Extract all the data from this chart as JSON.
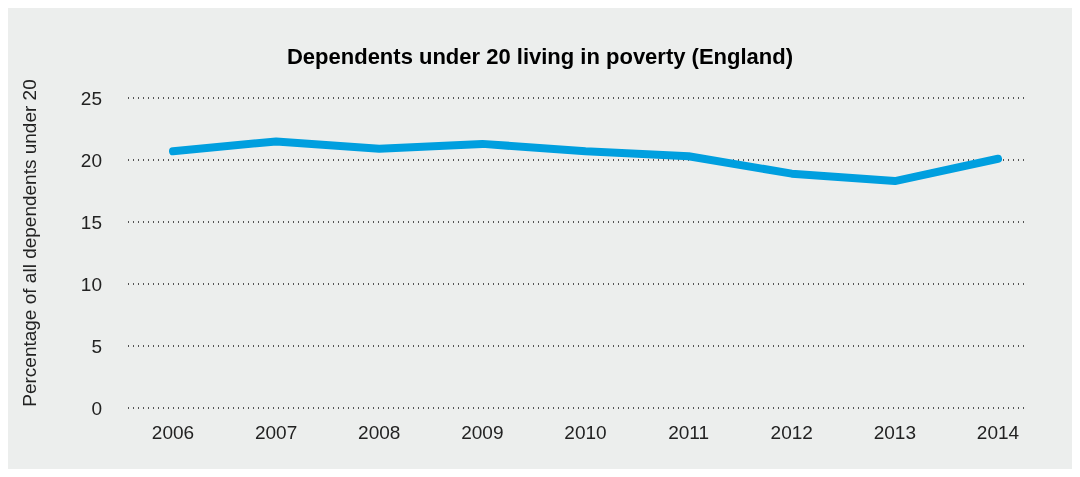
{
  "chart_data": {
    "type": "line",
    "title": "Dependents under 20 living in poverty (England)",
    "ylabel": "Percentage of all dependents under 20",
    "categories": [
      "2006",
      "2007",
      "2008",
      "2009",
      "2010",
      "2011",
      "2012",
      "2013",
      "2014"
    ],
    "series": [
      {
        "color": "#009fdf",
        "values": [
          20.7,
          21.5,
          20.9,
          21.3,
          20.7,
          20.3,
          18.9,
          18.3,
          20.1
        ]
      }
    ],
    "ylim": [
      0,
      25
    ],
    "yticks": [
      0,
      5,
      10,
      15,
      20,
      25
    ],
    "grid": "y",
    "legend": false,
    "marker": "none",
    "line_style": "solid"
  }
}
